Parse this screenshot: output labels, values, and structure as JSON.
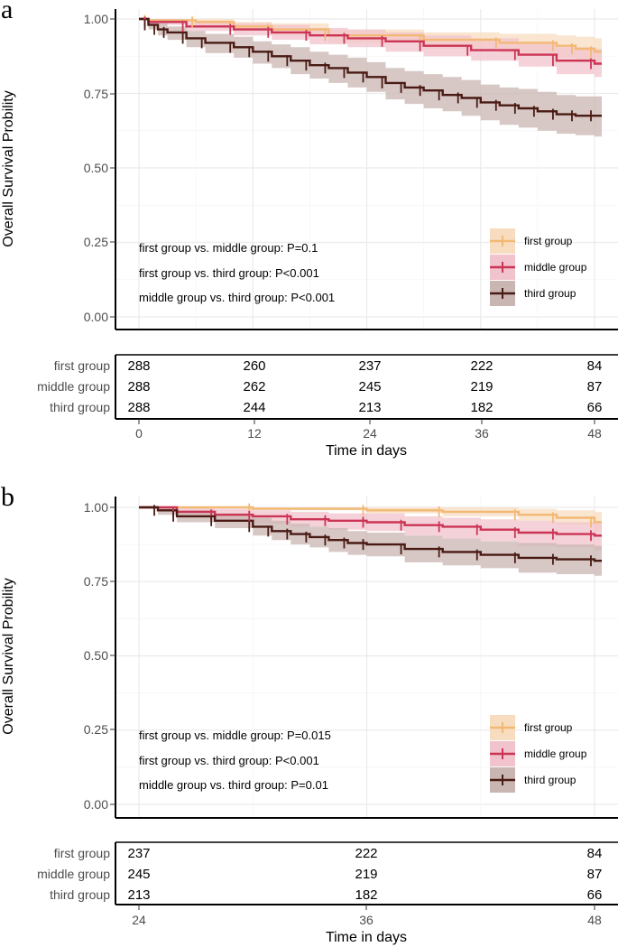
{
  "colors": {
    "first": "#f2b975",
    "middle": "#cc3456",
    "third": "#4a1a14",
    "first_band": "#f7dcc0",
    "middle_band": "#f1c3cc",
    "third_band": "#c9b6b2",
    "grid": "#ebebeb"
  },
  "panels": [
    {
      "letter": "a",
      "ylabel": "Overall Survival Probility",
      "xlabel": "Time in days",
      "yticks": [
        "0.00",
        "0.25",
        "0.50",
        "0.75",
        "1.00"
      ],
      "xticks": [
        "0",
        "12",
        "24",
        "36",
        "48"
      ],
      "pvalues": [
        "first group vs. middle group: P=0.1",
        "first group vs. third group: P<0.001",
        "middle group vs. third group: P<0.001"
      ],
      "legend": [
        "first group",
        "middle group",
        "third group"
      ],
      "risk_labels": [
        "first group",
        "middle group",
        "third group"
      ],
      "risk_table": [
        [
          "288",
          "260",
          "237",
          "222",
          "84"
        ],
        [
          "288",
          "262",
          "245",
          "219",
          "87"
        ],
        [
          "288",
          "244",
          "213",
          "182",
          "66"
        ]
      ]
    },
    {
      "letter": "b",
      "ylabel": "Overall Survival Probility",
      "xlabel": "Time in days",
      "yticks": [
        "0.00",
        "0.25",
        "0.50",
        "0.75",
        "1.00"
      ],
      "xticks": [
        "24",
        "36",
        "48"
      ],
      "pvalues": [
        "first group vs. middle group: P=0.015",
        "first group vs. third group: P<0.001",
        "middle group vs. third group: P=0.01"
      ],
      "legend": [
        "first group",
        "middle group",
        "third group"
      ],
      "risk_labels": [
        "first group",
        "middle group",
        "third group"
      ],
      "risk_table": [
        [
          "237",
          "222",
          "84"
        ],
        [
          "245",
          "219",
          "87"
        ],
        [
          "213",
          "182",
          "66"
        ]
      ]
    }
  ],
  "chart_data": [
    {
      "type": "line",
      "title": "a",
      "xlabel": "Time in days",
      "ylabel": "Overall Survival Probility",
      "xlim": [
        0,
        48
      ],
      "ylim": [
        0,
        1
      ],
      "series": [
        {
          "name": "first group",
          "x": [
            0,
            1,
            6,
            10,
            14,
            20,
            30,
            38,
            44,
            46,
            48
          ],
          "y": [
            1.0,
            0.995,
            0.99,
            0.975,
            0.965,
            0.945,
            0.93,
            0.92,
            0.91,
            0.9,
            0.89
          ],
          "ci_low": [
            1.0,
            0.99,
            0.98,
            0.96,
            0.945,
            0.92,
            0.9,
            0.885,
            0.87,
            0.86,
            0.845
          ],
          "ci_high": [
            1.0,
            1.0,
            1.0,
            0.99,
            0.985,
            0.965,
            0.955,
            0.95,
            0.945,
            0.94,
            0.935
          ]
        },
        {
          "name": "middle group",
          "x": [
            0,
            1,
            5,
            10,
            14,
            18,
            22,
            26,
            30,
            35,
            40,
            44,
            48
          ],
          "y": [
            1.0,
            0.99,
            0.975,
            0.965,
            0.955,
            0.945,
            0.935,
            0.925,
            0.91,
            0.895,
            0.88,
            0.86,
            0.85
          ],
          "ci_low": [
            1.0,
            0.98,
            0.96,
            0.945,
            0.93,
            0.915,
            0.905,
            0.89,
            0.875,
            0.86,
            0.84,
            0.815,
            0.805
          ],
          "ci_high": [
            1.0,
            1.0,
            0.99,
            0.985,
            0.98,
            0.97,
            0.965,
            0.955,
            0.945,
            0.935,
            0.92,
            0.905,
            0.9
          ]
        },
        {
          "name": "third group",
          "x": [
            0,
            1,
            2,
            3,
            5,
            7,
            10,
            12,
            14,
            16,
            18,
            20,
            22,
            24,
            26,
            28,
            30,
            32,
            34,
            36,
            38,
            40,
            42,
            44,
            46,
            48
          ],
          "y": [
            1.0,
            0.98,
            0.965,
            0.955,
            0.935,
            0.92,
            0.905,
            0.89,
            0.875,
            0.86,
            0.845,
            0.835,
            0.82,
            0.805,
            0.785,
            0.77,
            0.76,
            0.745,
            0.735,
            0.72,
            0.71,
            0.7,
            0.69,
            0.68,
            0.675,
            0.675
          ],
          "ci_low": [
            1.0,
            0.965,
            0.945,
            0.93,
            0.905,
            0.885,
            0.87,
            0.85,
            0.835,
            0.815,
            0.8,
            0.785,
            0.77,
            0.755,
            0.73,
            0.715,
            0.7,
            0.69,
            0.675,
            0.66,
            0.645,
            0.635,
            0.625,
            0.615,
            0.61,
            0.605
          ],
          "ci_high": [
            1.0,
            0.995,
            0.985,
            0.975,
            0.96,
            0.95,
            0.94,
            0.925,
            0.915,
            0.905,
            0.89,
            0.88,
            0.87,
            0.855,
            0.835,
            0.825,
            0.815,
            0.805,
            0.795,
            0.78,
            0.77,
            0.765,
            0.755,
            0.745,
            0.74,
            0.74
          ]
        }
      ]
    },
    {
      "type": "line",
      "title": "b",
      "xlabel": "Time in days",
      "ylabel": "Overall Survival Probility",
      "xlim": [
        24,
        48
      ],
      "ylim": [
        0,
        1
      ],
      "series": [
        {
          "name": "first group",
          "x": [
            24,
            30,
            36,
            40,
            44,
            46,
            48
          ],
          "y": [
            1.0,
            0.995,
            0.99,
            0.985,
            0.975,
            0.965,
            0.95
          ],
          "ci_low": [
            1.0,
            0.99,
            0.98,
            0.97,
            0.955,
            0.94,
            0.92
          ],
          "ci_high": [
            1.0,
            1.0,
            1.0,
            1.0,
            0.995,
            0.99,
            0.985
          ]
        },
        {
          "name": "middle group",
          "x": [
            24,
            26,
            28,
            30,
            32,
            34,
            36,
            38,
            40,
            42,
            44,
            46,
            48
          ],
          "y": [
            1.0,
            0.985,
            0.975,
            0.97,
            0.96,
            0.955,
            0.95,
            0.94,
            0.935,
            0.925,
            0.915,
            0.91,
            0.905
          ],
          "ci_low": [
            1.0,
            0.97,
            0.955,
            0.945,
            0.935,
            0.925,
            0.92,
            0.905,
            0.895,
            0.885,
            0.87,
            0.865,
            0.855
          ],
          "ci_high": [
            1.0,
            1.0,
            0.995,
            0.99,
            0.985,
            0.98,
            0.98,
            0.97,
            0.965,
            0.96,
            0.955,
            0.95,
            0.945
          ]
        },
        {
          "name": "third group",
          "x": [
            24,
            25,
            26,
            28,
            30,
            31,
            32,
            33,
            34,
            35,
            36,
            38,
            40,
            42,
            44,
            46,
            48
          ],
          "y": [
            1.0,
            0.99,
            0.97,
            0.955,
            0.935,
            0.92,
            0.91,
            0.9,
            0.89,
            0.88,
            0.875,
            0.86,
            0.85,
            0.84,
            0.83,
            0.825,
            0.82
          ],
          "ci_low": [
            1.0,
            0.975,
            0.95,
            0.93,
            0.905,
            0.89,
            0.875,
            0.865,
            0.85,
            0.84,
            0.835,
            0.815,
            0.805,
            0.795,
            0.78,
            0.775,
            0.77
          ],
          "ci_high": [
            1.0,
            1.0,
            0.99,
            0.98,
            0.965,
            0.955,
            0.945,
            0.935,
            0.93,
            0.92,
            0.915,
            0.905,
            0.895,
            0.885,
            0.88,
            0.875,
            0.87
          ]
        }
      ]
    }
  ]
}
